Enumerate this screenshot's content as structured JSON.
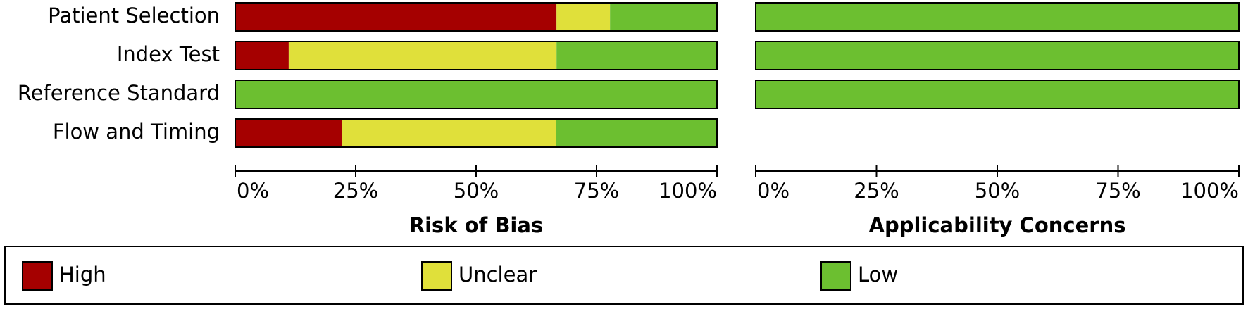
{
  "chart_data": [
    {
      "type": "stacked-bar-horizontal",
      "categories": [
        "Patient Selection",
        "Index Test",
        "Reference Standard",
        "Flow and Timing"
      ],
      "series": [
        {
          "name": "High",
          "color": "#a50000",
          "values": [
            66.7,
            11.1,
            0,
            22.2
          ]
        },
        {
          "name": "Unclear",
          "color": "#e0e03a",
          "values": [
            11.1,
            55.6,
            0,
            44.4
          ]
        },
        {
          "name": "Low",
          "color": "#6cbf30",
          "values": [
            22.2,
            33.3,
            100,
            33.3
          ]
        }
      ],
      "xlim": [
        0,
        100
      ],
      "xticks": [
        {
          "value": 0,
          "label": "0%"
        },
        {
          "value": 25,
          "label": "25%"
        },
        {
          "value": 50,
          "label": "50%"
        },
        {
          "value": 75,
          "label": "75%"
        },
        {
          "value": 100,
          "label": "100%"
        }
      ],
      "x_label": "Risk of Bias"
    },
    {
      "type": "stacked-bar-horizontal",
      "series": [
        {
          "color": "#a50000",
          "values": [
            0,
            0,
            0,
            null
          ]
        },
        {
          "color": "#e0e03a",
          "values": [
            0,
            0,
            0,
            null
          ]
        },
        {
          "color": "#6cbf30",
          "values": [
            100,
            100,
            100,
            null
          ]
        }
      ],
      "xlim": [
        0,
        100
      ],
      "xticks": [
        {
          "value": 0,
          "label": "0%"
        },
        {
          "value": 25,
          "label": "25%"
        },
        {
          "value": 50,
          "label": "50%"
        },
        {
          "value": 75,
          "label": "75%"
        },
        {
          "value": 100,
          "label": "100%"
        }
      ],
      "x_label": "Applicability Concerns"
    }
  ]
}
